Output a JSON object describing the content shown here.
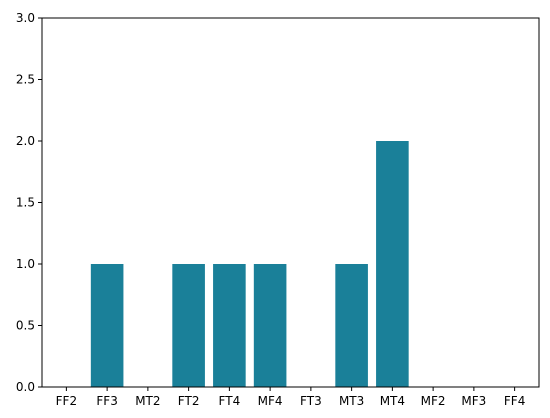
{
  "chart_data": {
    "type": "bar",
    "categories": [
      "FF2",
      "FF3",
      "MT2",
      "FT2",
      "FT4",
      "MF4",
      "FT3",
      "MT3",
      "MT4",
      "MF2",
      "MF3",
      "FF4"
    ],
    "values": [
      0,
      1,
      0,
      1,
      1,
      1,
      0,
      1,
      2,
      0,
      0,
      0
    ],
    "ylim": [
      0,
      3
    ],
    "yticks": [
      "0.0",
      "0.5",
      "1.0",
      "1.5",
      "2.0",
      "2.5",
      "3.0"
    ],
    "grid": false,
    "bar_color": "#1a8099",
    "axis_color": "#000000"
  }
}
